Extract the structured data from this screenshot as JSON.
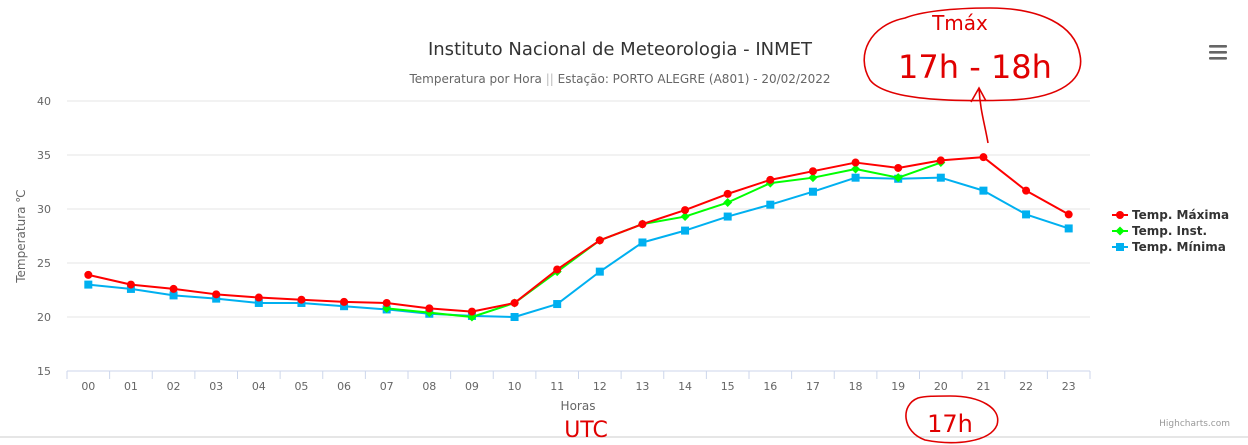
{
  "chart_data": {
    "type": "line",
    "title": "Instituto Nacional de Meteorologia - INMET",
    "subtitle_prefix": "Temperatura por Hora ",
    "subtitle_separator": "||",
    "subtitle_suffix": " Estação: PORTO ALEGRE (A801) - 20/02/2022",
    "xlabel": "Horas",
    "ylabel": "Temperatura ℃",
    "categories": [
      "00",
      "01",
      "02",
      "03",
      "04",
      "05",
      "06",
      "07",
      "08",
      "09",
      "10",
      "11",
      "12",
      "13",
      "14",
      "15",
      "16",
      "17",
      "18",
      "19",
      "20",
      "21",
      "22",
      "23"
    ],
    "ylim": [
      15,
      40
    ],
    "yticks": [
      15,
      20,
      25,
      30,
      35,
      40
    ],
    "grid": true,
    "legend_position": "right",
    "series": [
      {
        "name": "Temp. Máxima",
        "color": "#ff0000",
        "marker": "circle",
        "values": [
          23.9,
          23.0,
          22.6,
          22.1,
          21.8,
          21.6,
          21.4,
          21.3,
          20.8,
          20.5,
          21.3,
          24.4,
          27.1,
          28.6,
          29.9,
          31.4,
          32.7,
          33.5,
          34.3,
          33.8,
          34.5,
          34.8,
          31.7,
          29.5
        ]
      },
      {
        "name": "Temp. Inst.",
        "color": "#00ff00",
        "marker": "diamond",
        "values": [
          null,
          null,
          null,
          null,
          null,
          null,
          null,
          20.8,
          20.4,
          20.0,
          21.3,
          24.2,
          27.1,
          28.6,
          29.3,
          30.6,
          32.4,
          32.9,
          33.7,
          32.9,
          34.3,
          null,
          null,
          null
        ]
      },
      {
        "name": "Temp. Mínima",
        "color": "#00b0f0",
        "marker": "square",
        "values": [
          23.0,
          22.6,
          22.0,
          21.7,
          21.3,
          21.3,
          21.0,
          20.7,
          20.3,
          20.1,
          20.0,
          21.2,
          24.2,
          26.9,
          28.0,
          29.3,
          30.4,
          31.6,
          32.9,
          32.8,
          32.9,
          31.7,
          29.5,
          28.2
        ]
      }
    ],
    "credits": "Highcharts.com",
    "annotations": {
      "tmax_label": "Tmáx",
      "tmax_range": "17h - 18h",
      "hour_label": "17h",
      "utc_label": "UTC"
    }
  },
  "menu": {
    "icon": "hamburger-icon"
  }
}
